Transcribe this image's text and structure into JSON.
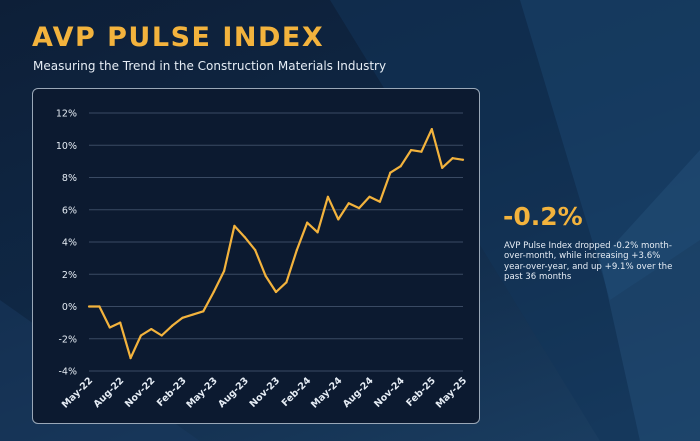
{
  "header": {
    "title": "AVP PULSE INDEX",
    "subtitle": "Measuring the Trend in the Construction Materials Industry"
  },
  "stat": {
    "value": "-0.2%",
    "description": "AVP Pulse Index dropped -0.2% month-over-month, while increasing +3.6% year-over-year, and up +9.1% over the past 36 months"
  },
  "colors": {
    "accent": "#f3b33d",
    "panel": "#0c1a30",
    "gridline": "#3a4a63",
    "text": "#e6edf5"
  },
  "chart_data": {
    "type": "line",
    "title": "",
    "xlabel": "",
    "ylabel": "",
    "ylim": [
      -4,
      12
    ],
    "grid": true,
    "yticks": [
      "-4%",
      "-2%",
      "0%",
      "2%",
      "4%",
      "6%",
      "8%",
      "10%",
      "12%"
    ],
    "ytick_values": [
      -4,
      -2,
      0,
      2,
      4,
      6,
      8,
      10,
      12
    ],
    "xtick_labels": [
      "May-22",
      "Aug-22",
      "Nov-22",
      "Feb-23",
      "May-23",
      "Aug-23",
      "Nov-23",
      "Feb-24",
      "May-24",
      "Aug-24",
      "Nov-24",
      "Feb-25",
      "May-25"
    ],
    "x": [
      "May-22",
      "Jun-22",
      "Jul-22",
      "Aug-22",
      "Sep-22",
      "Oct-22",
      "Nov-22",
      "Dec-22",
      "Jan-23",
      "Feb-23",
      "Mar-23",
      "Apr-23",
      "May-23",
      "Jun-23",
      "Jul-23",
      "Aug-23",
      "Sep-23",
      "Oct-23",
      "Nov-23",
      "Dec-23",
      "Jan-24",
      "Feb-24",
      "Mar-24",
      "Apr-24",
      "May-24",
      "Jun-24",
      "Jul-24",
      "Aug-24",
      "Sep-24",
      "Oct-24",
      "Nov-24",
      "Dec-24",
      "Jan-25",
      "Feb-25",
      "Mar-25",
      "Apr-25",
      "May-25"
    ],
    "series": [
      {
        "values": [
          0.0,
          0.0,
          -1.3,
          -1.0,
          -3.2,
          -1.8,
          -1.4,
          -1.8,
          -1.2,
          -0.7,
          -0.5,
          -0.3,
          0.9,
          2.2,
          5.0,
          4.3,
          3.5,
          1.9,
          0.9,
          1.5,
          3.5,
          5.2,
          4.6,
          6.8,
          5.4,
          6.4,
          6.1,
          6.8,
          6.5,
          8.3,
          8.7,
          9.7,
          9.6,
          11.0,
          8.6,
          9.2,
          9.1
        ]
      }
    ]
  }
}
